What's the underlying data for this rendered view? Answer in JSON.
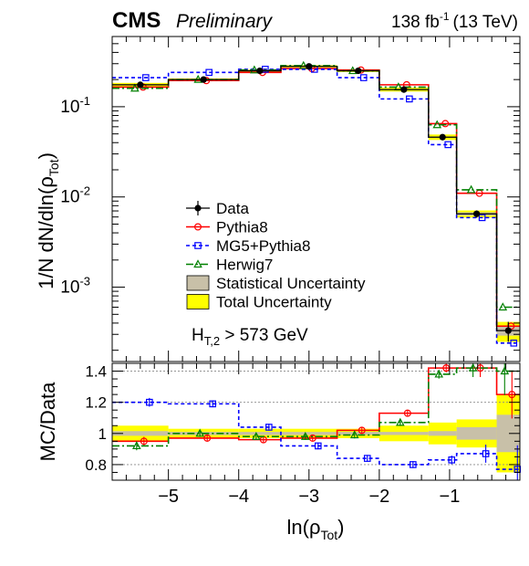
{
  "header": {
    "experiment": "CMS",
    "status": "Preliminary",
    "lumi": "138 fb",
    "lumi_exp": "-1",
    "energy": "(13 TeV)"
  },
  "selection": {
    "main": "H",
    "sub": "T,2",
    "rest": " > 573 GeV"
  },
  "colors": {
    "data": "#000000",
    "pythia8": "#ff0000",
    "mg5": "#0000ff",
    "herwig7": "#008000",
    "stat_unc": "#c8c0a8",
    "total_unc": "#ffff00"
  },
  "chart_data": [
    {
      "type": "line",
      "panel": "main",
      "ylabel": "1/N dN/dln(ρ",
      "ylabel_sub": "Tot",
      "ylabel_end": ")",
      "yscale": "log",
      "ylim": [
        0.00015,
        0.6
      ],
      "yticks": [
        {
          "base": "10",
          "exp": "-1",
          "value": 0.1
        },
        {
          "base": "10",
          "exp": "-2",
          "value": 0.01
        },
        {
          "base": "10",
          "exp": "-3",
          "value": 0.001
        }
      ],
      "bin_edges": [
        -5.8,
        -5.0,
        -4.0,
        -3.4,
        -2.6,
        -2.0,
        -1.3,
        -0.9,
        -0.33,
        0.0
      ],
      "series": [
        {
          "name": "Data",
          "style": "points",
          "values": [
            0.175,
            0.2,
            0.25,
            0.28,
            0.25,
            0.155,
            0.046,
            0.0065,
            0.00033
          ]
        },
        {
          "name": "Pythia8",
          "style": "step",
          "values": [
            0.165,
            0.195,
            0.24,
            0.265,
            0.255,
            0.175,
            0.065,
            0.011,
            0.00037
          ]
        },
        {
          "name": "MG5+Pythia8",
          "style": "step",
          "values": [
            0.21,
            0.24,
            0.26,
            0.26,
            0.21,
            0.122,
            0.038,
            0.0059,
            0.00024
          ]
        },
        {
          "name": "Herwig7",
          "style": "step",
          "values": [
            0.16,
            0.2,
            0.255,
            0.285,
            0.25,
            0.165,
            0.063,
            0.012,
            0.0006
          ]
        }
      ],
      "uncertainty": {
        "stat_rel": [
          0.015,
          0.01,
          0.01,
          0.01,
          0.01,
          0.01,
          0.015,
          0.04,
          0.12
        ],
        "total_rel": [
          0.05,
          0.03,
          0.03,
          0.03,
          0.03,
          0.05,
          0.07,
          0.09,
          0.25
        ]
      },
      "legend": [
        {
          "label": "Data",
          "kind": "data"
        },
        {
          "label": "Pythia8",
          "kind": "pythia8"
        },
        {
          "label": "MG5+Pythia8",
          "kind": "mg5"
        },
        {
          "label": "Herwig7",
          "kind": "herwig7"
        },
        {
          "label": "Statistical Uncertainty",
          "kind": "stat"
        },
        {
          "label": "Total Uncertainty",
          "kind": "total"
        }
      ]
    },
    {
      "type": "line",
      "panel": "ratio",
      "ylabel": "MC/Data",
      "ylim": [
        0.7,
        1.45
      ],
      "yticks": [
        "0.8",
        "1",
        "1.2",
        "1.4"
      ],
      "reference_lines": [
        0.8,
        1.2,
        1.4
      ],
      "xlabel": "ln(ρ",
      "xlabel_sub": "Tot",
      "xlabel_end": ")",
      "xlim": [
        -5.8,
        0.0
      ],
      "xticks": [
        "−5",
        "−4",
        "−3",
        "−2",
        "−1"
      ],
      "xtick_values": [
        -5,
        -4,
        -3,
        -2,
        -1
      ],
      "bin_edges": [
        -5.8,
        -5.0,
        -4.0,
        -3.4,
        -2.6,
        -2.0,
        -1.3,
        -0.9,
        -0.33,
        0.0
      ],
      "series": [
        {
          "name": "Pythia8",
          "values": [
            0.95,
            0.97,
            0.96,
            0.97,
            1.02,
            1.13,
            1.42,
            1.42,
            1.25
          ]
        },
        {
          "name": "MG5+Pythia8",
          "values": [
            1.2,
            1.19,
            1.04,
            0.92,
            0.84,
            0.8,
            0.83,
            0.87,
            0.77
          ]
        },
        {
          "name": "Herwig7",
          "values": [
            0.92,
            1.0,
            0.98,
            0.98,
            0.99,
            1.07,
            1.38,
            1.42,
            1.4
          ]
        }
      ],
      "uncertainty": {
        "stat_rel": [
          0.015,
          0.01,
          0.01,
          0.01,
          0.01,
          0.01,
          0.015,
          0.04,
          0.12
        ],
        "total_rel": [
          0.05,
          0.03,
          0.03,
          0.03,
          0.03,
          0.05,
          0.07,
          0.09,
          0.25
        ]
      }
    }
  ]
}
